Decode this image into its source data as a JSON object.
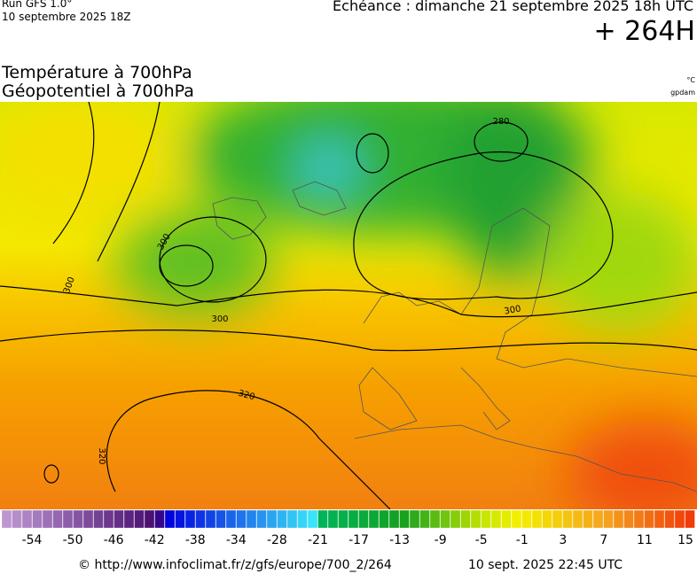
{
  "header": {
    "run": "Run GFS 1.0°",
    "run_date": "10 septembre 2025 18Z",
    "valid": "Echéance : dimanche 21 septembre 2025 18h UTC",
    "lead": "+ 264H"
  },
  "titles": {
    "temperature": "Température à 700hPa",
    "geopotential": "Géopotentiel à 700hPa",
    "temp_unit": "°C",
    "geo_unit": "gpdam"
  },
  "contour_labels": [
    "300",
    "300",
    "300",
    "300",
    "320",
    "320",
    "280"
  ],
  "colorbar": {
    "labels": [
      -54,
      -50,
      -46,
      -42,
      -38,
      -34,
      -28,
      -21,
      -17,
      -13,
      -9,
      -5,
      -1,
      3,
      7,
      11,
      15
    ]
  },
  "footer": {
    "url": "© http://www.infoclimat.fr/z/gfs/europe/700_2/264",
    "generated": "10 sept. 2025 22:45 UTC"
  }
}
